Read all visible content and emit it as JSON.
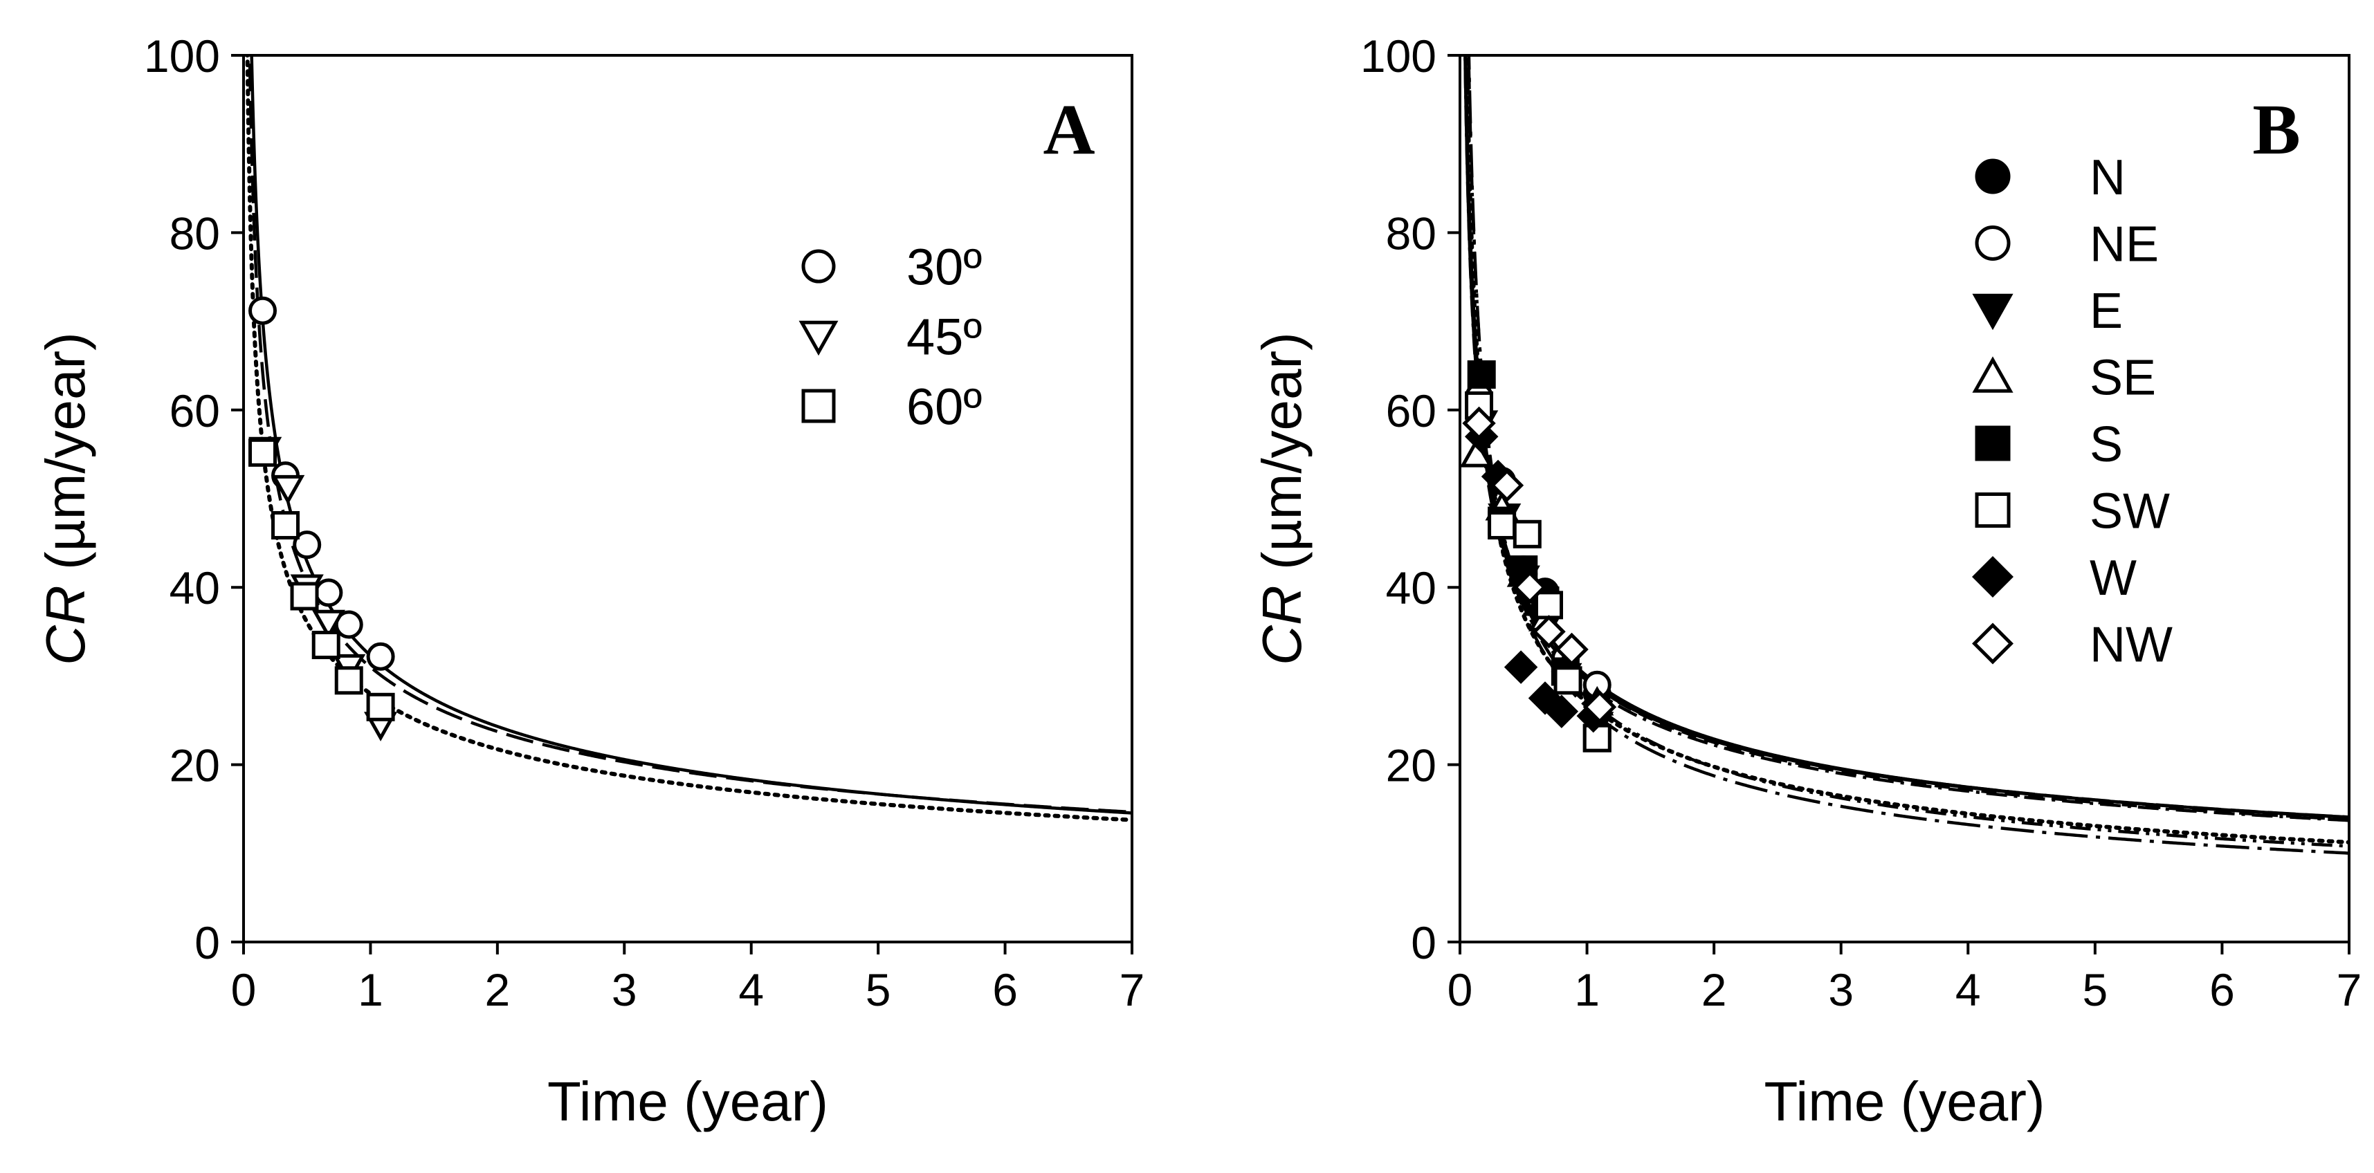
{
  "chart_data": [
    {
      "type": "scatter",
      "panel": "A",
      "xlabel": "Time (year)",
      "ylabel_italic": "CR",
      "ylabel_rest": " (µm/year)",
      "xlim": [
        0,
        7
      ],
      "ylim": [
        0,
        100
      ],
      "xticks": [
        "0",
        "1",
        "2",
        "3",
        "4",
        "5",
        "6",
        "7"
      ],
      "yticks": [
        "0",
        "20",
        "40",
        "60",
        "80",
        "100"
      ],
      "legend_position": "upper-right",
      "series": [
        {
          "name": "30º",
          "marker": "circle-open",
          "points": [
            [
              0.15,
              71.2
            ],
            [
              0.33,
              52.6
            ],
            [
              0.5,
              44.8
            ],
            [
              0.67,
              39.4
            ],
            [
              0.83,
              35.8
            ],
            [
              1.08,
              32.2
            ]
          ],
          "fit": {
            "a": 32.3,
            "b": -0.41,
            "dash": "solid"
          }
        },
        {
          "name": "45º",
          "marker": "triangle-down-open",
          "points": [
            [
              0.17,
              55.5
            ],
            [
              0.35,
              51.2
            ],
            [
              0.5,
              40.0
            ],
            [
              0.67,
              36.0
            ],
            [
              0.83,
              31.0
            ],
            [
              1.08,
              24.5
            ]
          ],
          "fit": {
            "a": 31.0,
            "b": -0.385,
            "dash": "longdash"
          }
        },
        {
          "name": "60º",
          "marker": "square-open",
          "points": [
            [
              0.15,
              55.2
            ],
            [
              0.33,
              47.0
            ],
            [
              0.48,
              39.0
            ],
            [
              0.65,
              33.5
            ],
            [
              0.83,
              29.5
            ],
            [
              1.08,
              26.5
            ]
          ],
          "fit": {
            "a": 28.0,
            "b": -0.365,
            "dash": "dot"
          }
        }
      ]
    },
    {
      "type": "scatter",
      "panel": "B",
      "xlabel": "Time (year)",
      "ylabel_italic": "CR",
      "ylabel_rest": " (µm/year)",
      "xlim": [
        0,
        7
      ],
      "ylim": [
        0,
        100
      ],
      "xticks": [
        "0",
        "1",
        "2",
        "3",
        "4",
        "5",
        "6",
        "7"
      ],
      "yticks": [
        "0",
        "20",
        "40",
        "60",
        "80",
        "100"
      ],
      "legend_position": "upper-right",
      "series": [
        {
          "name": "N",
          "marker": "circle-filled",
          "points": [
            [
              0.15,
              61.0
            ],
            [
              0.33,
              47.5
            ],
            [
              0.5,
              42.0
            ],
            [
              0.67,
              39.5
            ],
            [
              0.83,
              30.5
            ],
            [
              1.08,
              28.0
            ]
          ],
          "fit": {
            "a": 30.0,
            "b": -0.39,
            "dash": "solid"
          }
        },
        {
          "name": "NE",
          "marker": "circle-open",
          "points": [
            [
              0.15,
              61.5
            ],
            [
              0.33,
              52.0
            ],
            [
              0.5,
              41.5
            ],
            [
              0.67,
              38.0
            ],
            [
              0.83,
              32.0
            ],
            [
              1.08,
              29.0
            ]
          ],
          "fit": {
            "a": 29.8,
            "b": -0.385,
            "dash": "longdash"
          }
        },
        {
          "name": "E",
          "marker": "triangle-down-filled",
          "points": [
            [
              0.17,
              58.5
            ],
            [
              0.35,
              48.0
            ],
            [
              0.5,
              41.0
            ],
            [
              0.67,
              35.5
            ],
            [
              0.83,
              30.0
            ],
            [
              1.08,
              24.5
            ]
          ],
          "fit": {
            "a": 29.5,
            "b": -0.39,
            "dash": "shortdash"
          }
        },
        {
          "name": "SE",
          "marker": "triangle-up-open",
          "points": [
            [
              0.13,
              55.0
            ],
            [
              0.33,
              49.0
            ],
            [
              0.5,
              41.5
            ],
            [
              0.67,
              36.5
            ],
            [
              0.85,
              31.5
            ],
            [
              1.08,
              27.0
            ]
          ],
          "fit": {
            "a": 29.0,
            "b": -0.385,
            "dash": "dashdot"
          }
        },
        {
          "name": "S",
          "marker": "square-filled",
          "points": [
            [
              0.17,
              64.0
            ],
            [
              0.33,
              47.5
            ],
            [
              0.5,
              42.0
            ],
            [
              0.67,
              38.5
            ],
            [
              0.83,
              30.5
            ],
            [
              1.08,
              23.0
            ]
          ],
          "fit": {
            "a": 27.5,
            "b": -0.48,
            "dash": "dashdotdot"
          }
        },
        {
          "name": "SW",
          "marker": "square-open",
          "points": [
            [
              0.15,
              60.5
            ],
            [
              0.33,
              47.0
            ],
            [
              0.53,
              46.0
            ],
            [
              0.7,
              38.0
            ],
            [
              0.85,
              29.5
            ],
            [
              1.08,
              23.0
            ]
          ],
          "fit": {
            "a": 27.0,
            "b": -0.45,
            "dash": "dot"
          }
        },
        {
          "name": "W",
          "marker": "diamond-filled",
          "points": [
            [
              0.17,
              57.0
            ],
            [
              0.3,
              52.5
            ],
            [
              0.48,
              31.0
            ],
            [
              0.67,
              27.5
            ],
            [
              0.8,
              26.0
            ],
            [
              1.05,
              25.5
            ]
          ],
          "fit": {
            "a": 26.5,
            "b": -0.5,
            "dash": "longdashdot"
          }
        },
        {
          "name": "NW",
          "marker": "diamond-open",
          "points": [
            [
              0.15,
              58.5
            ],
            [
              0.37,
              51.5
            ],
            [
              0.55,
              40.0
            ],
            [
              0.7,
              35.0
            ],
            [
              0.88,
              33.0
            ],
            [
              1.1,
              26.5
            ]
          ],
          "fit": {
            "a": 29.5,
            "b": -0.38,
            "dash": "solid2"
          }
        }
      ]
    }
  ]
}
